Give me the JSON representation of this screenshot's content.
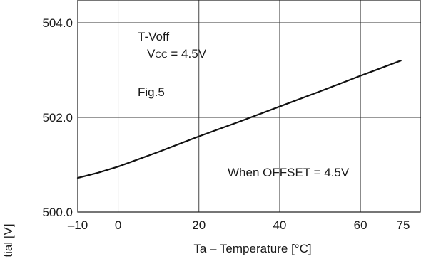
{
  "chart_data": {
    "type": "line",
    "title": "",
    "xlabel": "Ta – Temperature [°C]",
    "ylabel": "tial [V]",
    "xlim": [
      -10,
      75
    ],
    "ylim": [
      500.0,
      504.0
    ],
    "x_ticks": [
      {
        "value": -10,
        "label": "–10"
      },
      {
        "value": 0,
        "label": "0"
      },
      {
        "value": 20,
        "label": "20"
      },
      {
        "value": 40,
        "label": "40"
      },
      {
        "value": 60,
        "label": "60"
      },
      {
        "value": 75,
        "label": "75"
      }
    ],
    "y_ticks": [
      {
        "value": 500.0,
        "label": "500.0"
      },
      {
        "value": 502.0,
        "label": "502.0"
      },
      {
        "value": 504.0,
        "label": "504.0"
      }
    ],
    "grid": true,
    "series": [
      {
        "color": "#111111",
        "x": [
          -10,
          -5,
          0,
          10,
          20,
          30,
          40,
          50,
          60,
          70
        ],
        "y": [
          500.72,
          500.83,
          500.96,
          501.27,
          501.6,
          501.91,
          502.23,
          502.55,
          502.88,
          503.2
        ]
      }
    ],
    "annotations": {
      "test_label": "T-Voff",
      "vcc_prefix": "V",
      "vcc_sub": "CC",
      "vcc_value": " = 4.5V",
      "figure": "Fig.5",
      "condition": "When OFFSET = 4.5V"
    }
  }
}
